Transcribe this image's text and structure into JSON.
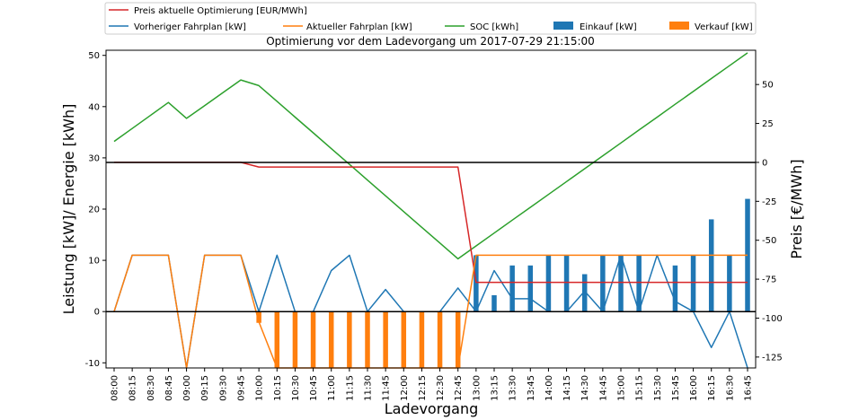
{
  "chart_data": {
    "type": "line",
    "title": "Optimierung vor dem Ladevorgang um 2017-07-29 21:15:00",
    "xlabel": "Ladevorgang",
    "ylabel_left": "Leistung [kW]/ Energie [kWh]",
    "ylabel_right": "Preis [€/MWh]",
    "ylim_left": [
      -11,
      51
    ],
    "ylim_right": [
      -132,
      72
    ],
    "yticks_left": [
      -10,
      0,
      10,
      20,
      30,
      40,
      50
    ],
    "yticks_right": [
      -125,
      -100,
      -75,
      -50,
      -25,
      0,
      25,
      50
    ],
    "hlines_left": [
      0
    ],
    "hlines_right": [
      0
    ],
    "grid": false,
    "legend_placement": "above plot, two rows",
    "categories": [
      "08:00",
      "08:15",
      "08:30",
      "08:45",
      "09:00",
      "09:15",
      "09:30",
      "09:45",
      "10:00",
      "10:15",
      "10:30",
      "10:45",
      "11:00",
      "11:15",
      "11:30",
      "11:45",
      "12:00",
      "12:15",
      "12:30",
      "12:45",
      "13:00",
      "13:15",
      "13:30",
      "13:45",
      "14:00",
      "14:15",
      "14:30",
      "14:45",
      "15:00",
      "15:15",
      "15:30",
      "15:45",
      "16:00",
      "16:15",
      "16:30",
      "16:45"
    ],
    "series": [
      {
        "name": "Preis aktuelle Optimierung [EUR/MWh]",
        "kind": "line",
        "axis": "right",
        "color": "#d62728",
        "values": [
          0,
          0,
          0,
          0,
          0,
          0,
          0,
          0,
          -3,
          -3,
          -3,
          -3,
          -3,
          -3,
          -3,
          -3,
          -3,
          -3,
          -3,
          -3,
          -77,
          -77,
          -77,
          -77,
          -77,
          -77,
          -77,
          -77,
          -77,
          -77,
          -77,
          -77,
          -77,
          -77,
          -77,
          -77
        ]
      },
      {
        "name": "Vorheriger Fahrplan [kW]",
        "kind": "line",
        "axis": "left",
        "color": "#1f77b4",
        "values": [
          0,
          11,
          11,
          11,
          -11,
          11,
          11,
          11,
          0,
          11,
          0,
          0,
          8,
          11,
          0,
          4.3,
          0,
          0,
          0,
          4.6,
          0,
          8,
          2.5,
          2.5,
          0,
          0,
          4,
          0,
          11,
          0,
          11,
          2,
          0,
          -7,
          0,
          -11
        ]
      },
      {
        "name": "Aktueller Fahrplan [kW]",
        "kind": "line",
        "axis": "left",
        "color": "#ff7f0e",
        "values": [
          0,
          11,
          11,
          11,
          -11,
          11,
          11,
          11,
          -2,
          -11,
          -11,
          -11,
          -11,
          -11,
          -11,
          -11,
          -11,
          -11,
          -11,
          -11,
          11,
          11,
          11,
          11,
          11,
          11,
          11,
          11,
          11,
          11,
          11,
          11,
          11,
          11,
          11,
          11
        ]
      },
      {
        "name": "SOC [kWh]",
        "kind": "line",
        "axis": "left",
        "color": "#2ca02c",
        "values": [
          33.2,
          null,
          null,
          40.8,
          37.7,
          null,
          null,
          45.2,
          44.1,
          null,
          null,
          null,
          null,
          null,
          null,
          null,
          null,
          null,
          null,
          10.3,
          null,
          null,
          null,
          null,
          null,
          null,
          null,
          null,
          null,
          null,
          null,
          null,
          null,
          null,
          null,
          50.5
        ]
      },
      {
        "name": "Einkauf [kW]",
        "kind": "bar",
        "axis": "left",
        "color": "#1f77b4",
        "values": [
          0,
          0,
          0,
          0,
          0,
          0,
          0,
          0,
          0,
          0,
          0,
          0,
          0,
          0,
          0,
          0,
          0,
          0,
          0,
          0,
          11,
          3.2,
          9,
          9,
          11,
          11,
          7.3,
          11,
          11,
          11,
          0,
          9,
          11,
          18,
          11,
          22
        ]
      },
      {
        "name": "Verkauf [kW]",
        "kind": "bar",
        "axis": "left",
        "color": "#ff7f0e",
        "values": [
          0,
          0,
          0,
          0,
          0,
          0,
          0,
          0,
          -2.2,
          -11,
          -11,
          -11,
          -11,
          -11,
          -11,
          -11,
          -11,
          -11,
          -11,
          -11,
          0,
          0,
          0,
          0,
          0,
          0,
          0,
          0,
          0,
          0,
          0,
          0,
          0,
          0,
          0,
          0
        ]
      }
    ]
  }
}
